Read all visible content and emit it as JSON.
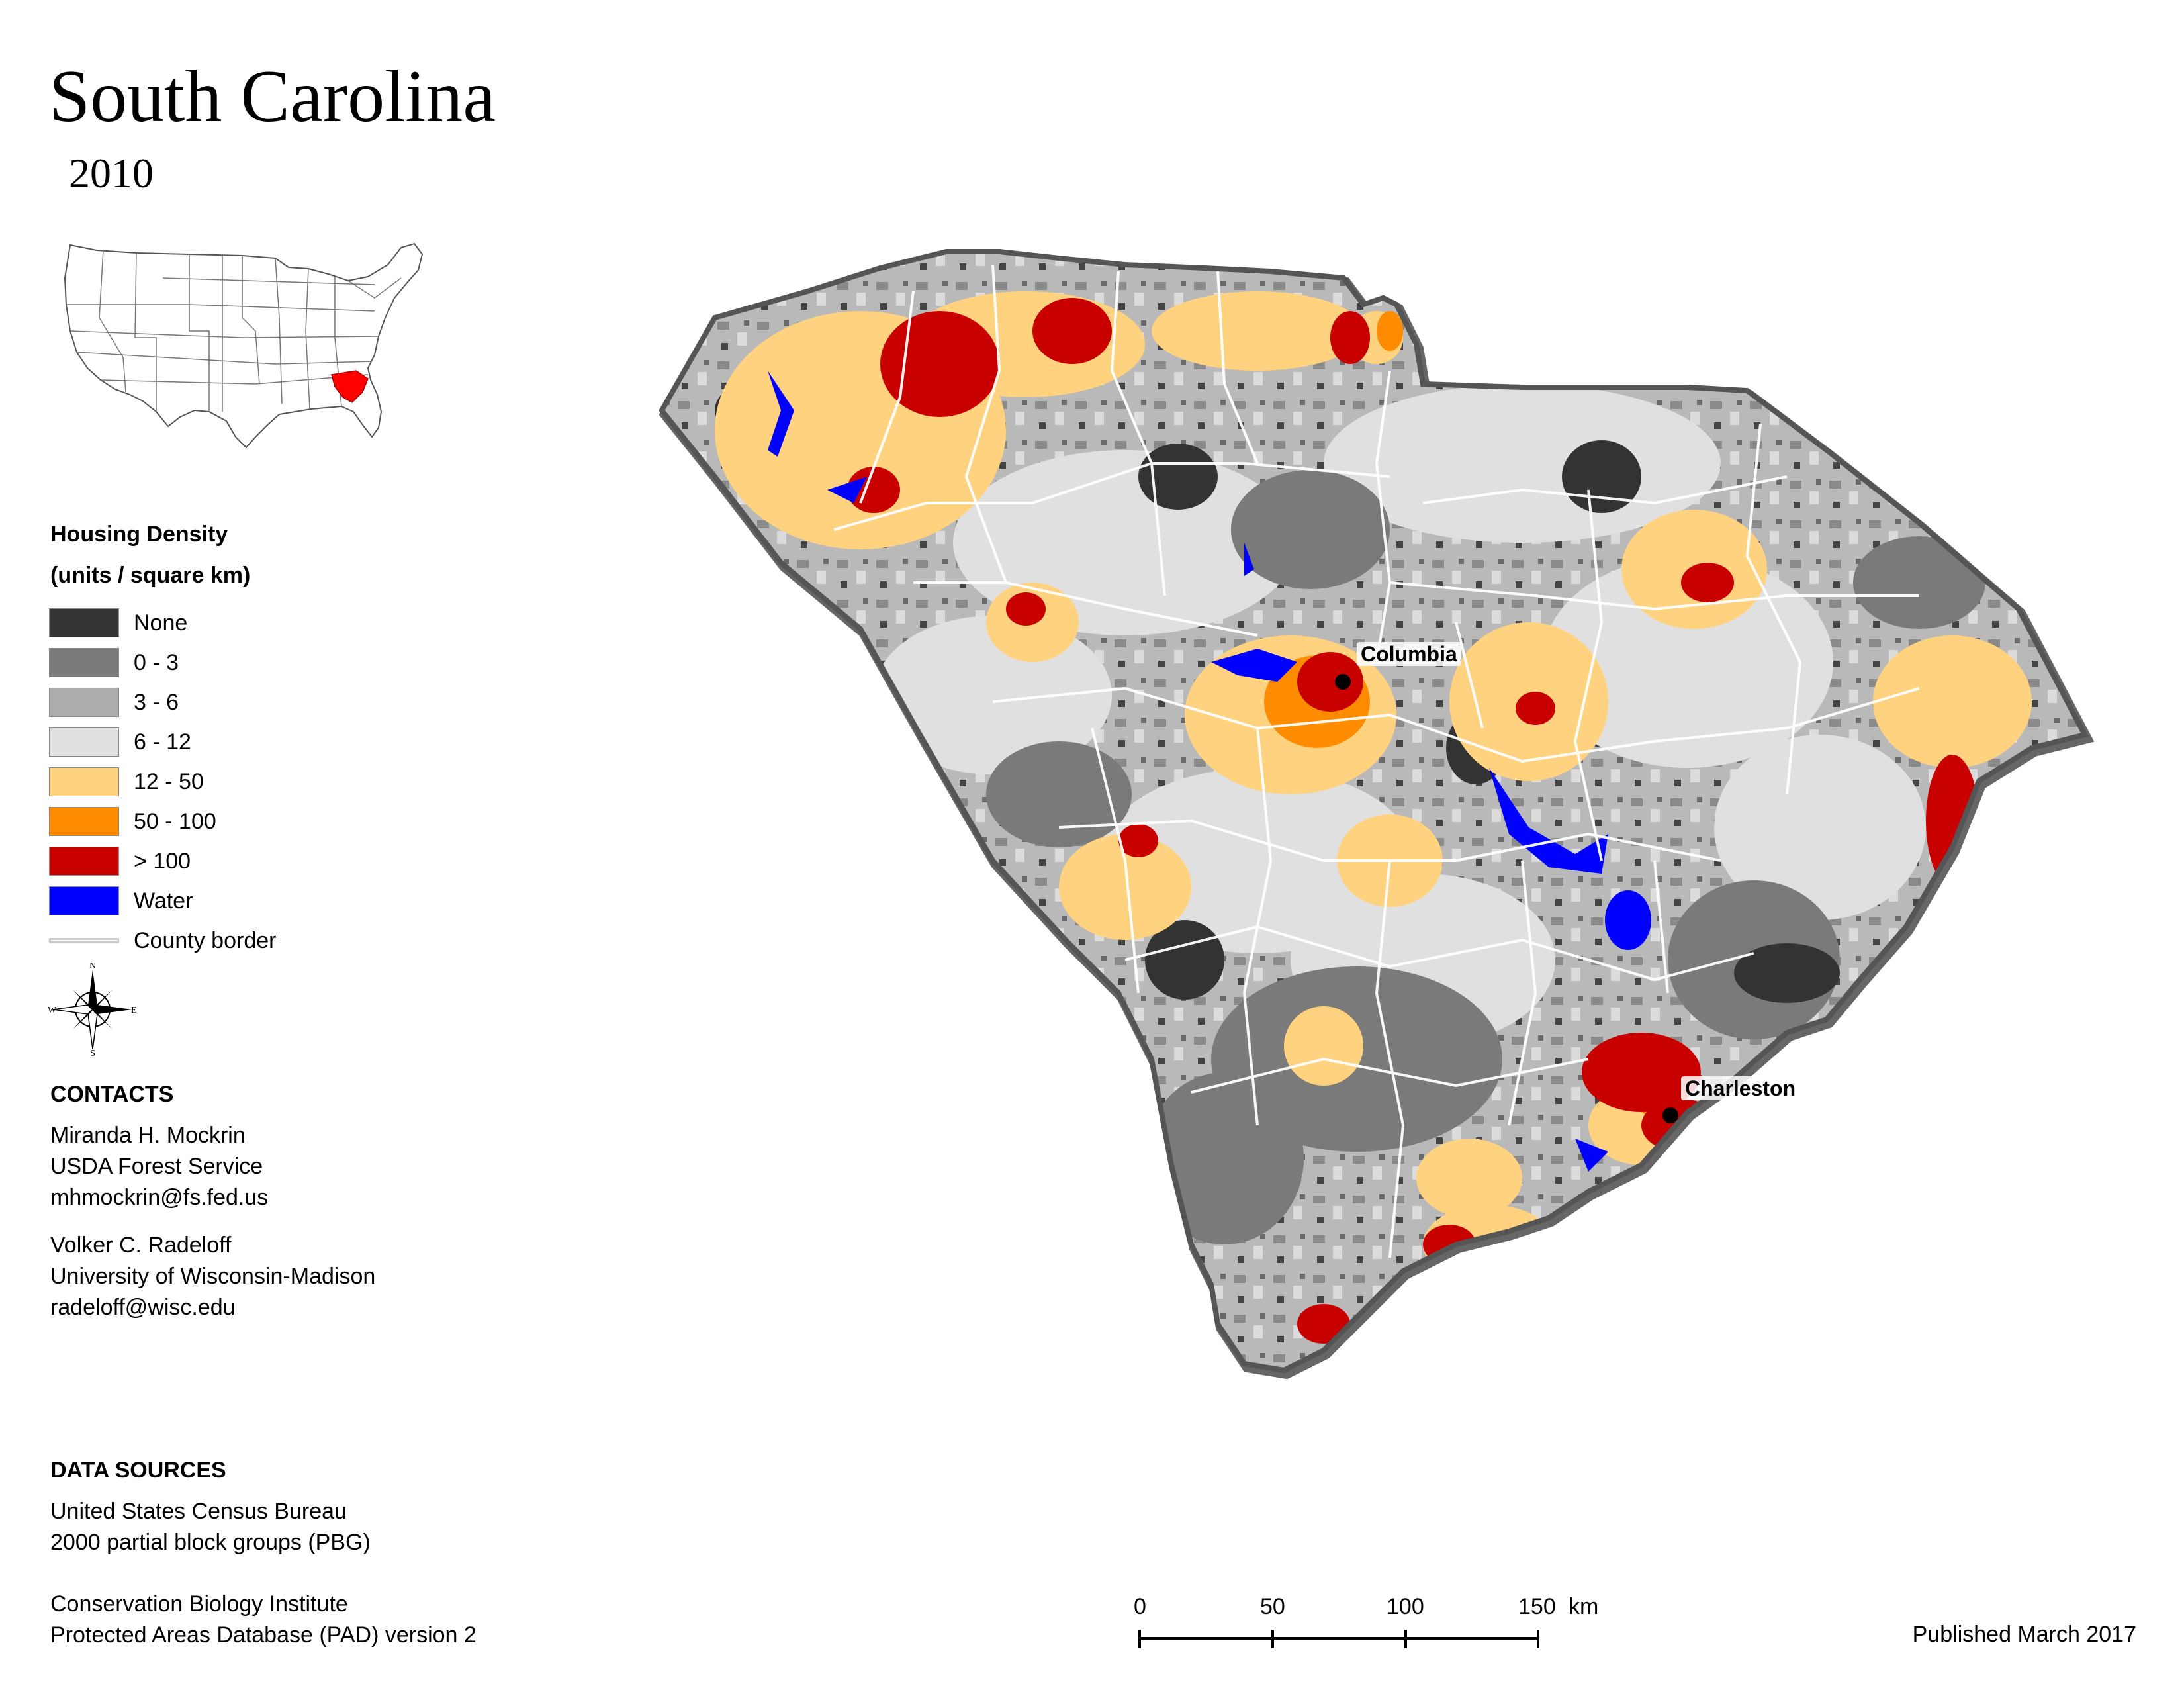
{
  "title": "South Carolina",
  "year": "2010",
  "cities": [
    {
      "name": "Columbia"
    },
    {
      "name": "Charleston"
    }
  ],
  "legend": {
    "title_line1": "Housing Density",
    "title_line2": "(units / square km)",
    "items": [
      {
        "label": "None",
        "color": "#333333"
      },
      {
        "label": "0 - 3",
        "color": "#7a7a7a"
      },
      {
        "label": "3 - 6",
        "color": "#adadad"
      },
      {
        "label": "6 - 12",
        "color": "#e0e0e0"
      },
      {
        "label": "12 - 50",
        "color": "#ffd27f"
      },
      {
        "label": "50 - 100",
        "color": "#ff8c00"
      },
      {
        "label": "> 100",
        "color": "#c80000"
      },
      {
        "label": "Water",
        "color": "#0000ff"
      }
    ],
    "county_border_label": "County border"
  },
  "compass": {
    "n": "N",
    "s": "S",
    "e": "E",
    "w": "W"
  },
  "contacts": {
    "heading": "CONTACTS",
    "people": [
      {
        "name": "Miranda H. Mockrin",
        "org": "USDA Forest Service",
        "email": "mhmockrin@fs.fed.us"
      },
      {
        "name": "Volker C. Radeloff",
        "org": "University of Wisconsin-Madison",
        "email": "radeloff@wisc.edu"
      }
    ]
  },
  "data_sources": {
    "heading": "DATA SOURCES",
    "lines": [
      "United States Census Bureau",
      "2000 partial block groups (PBG)",
      "Conservation Biology Institute",
      "Protected Areas Database (PAD) version 2"
    ]
  },
  "scale": {
    "ticks": [
      "0",
      "50",
      "100",
      "150"
    ],
    "unit": "km"
  },
  "published": "Published March 2017"
}
